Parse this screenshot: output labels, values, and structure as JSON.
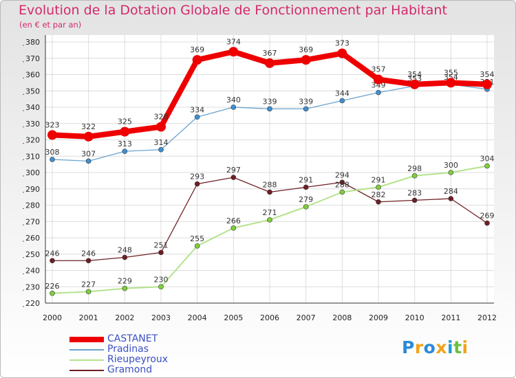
{
  "title": "Evolution de la Dotation Globale de Fonctionnement par Habitant",
  "subtitle": "(en € et par an)",
  "logo": {
    "text": "Proxiti",
    "colors": [
      "#2a8ad8",
      "#f3a21b",
      "#2a8ad8",
      "#f3a21b",
      "#1f9cd4",
      "#6abf3d",
      "#f3a21b"
    ]
  },
  "chart_data": {
    "type": "line",
    "title": "Evolution de la Dotation Globale de Fonctionnement par Habitant",
    "subtitle": "(en € et par an)",
    "xlabel": "",
    "ylabel": "",
    "x": [
      "2000",
      "2001",
      "2002",
      "2003",
      "2004",
      "2005",
      "2006",
      "2007",
      "2008",
      "2009",
      "2010",
      "2011",
      "2012"
    ],
    "ylim": [
      220,
      380
    ],
    "yticks": [
      220,
      230,
      240,
      250,
      260,
      270,
      280,
      290,
      300,
      310,
      320,
      330,
      340,
      350,
      360,
      370,
      380
    ],
    "grid": true,
    "legend_position": "bottom-left",
    "series": [
      {
        "name": "Gramond",
        "color": "#6e1f24",
        "line_width": 1.3,
        "marker_color": "#6e1f24",
        "values": [
          246,
          246,
          248,
          251,
          293,
          297,
          288,
          291,
          294,
          282,
          283,
          284,
          269
        ],
        "labels": [
          "246",
          "246",
          "248",
          "251",
          "293",
          "297",
          "288",
          "291",
          "294",
          "282",
          "283",
          "284",
          "269"
        ]
      },
      {
        "name": "Rieupeyroux",
        "color": "#b4e38c",
        "line_width": 2,
        "marker_color": "#7fcf3b",
        "values": [
          226,
          227,
          229,
          230,
          255,
          266,
          271,
          279,
          288,
          291,
          298,
          300,
          304
        ],
        "labels": [
          "226",
          "227",
          "229",
          "230",
          "255",
          "266",
          "271",
          "279",
          "288",
          "291",
          "298",
          "300",
          "304"
        ]
      },
      {
        "name": "Pradinas",
        "color": "#6aa3cf",
        "line_width": 1.3,
        "marker_color": "#3f8fd2",
        "values": [
          308,
          307,
          313,
          314,
          334,
          340,
          339,
          339,
          344,
          349,
          353,
          354,
          351
        ],
        "labels": [
          "308",
          "307",
          "313",
          "314",
          "334",
          "340",
          "339",
          "339",
          "344",
          "349",
          "353",
          "354",
          "351"
        ]
      },
      {
        "name": "CASTANET",
        "color": "#ee0000",
        "line_width": 8,
        "marker_color": "#ee0000",
        "values": [
          323,
          322,
          325,
          328,
          369,
          374,
          367,
          369,
          373,
          357,
          354,
          355,
          354
        ],
        "labels": [
          "323",
          "322",
          "325",
          "328",
          "369",
          "374",
          "367",
          "369",
          "373",
          "357",
          "354",
          "355",
          "354"
        ]
      }
    ],
    "legend": [
      "CASTANET",
      "Pradinas",
      "Rieupeyroux",
      "Gramond"
    ]
  }
}
